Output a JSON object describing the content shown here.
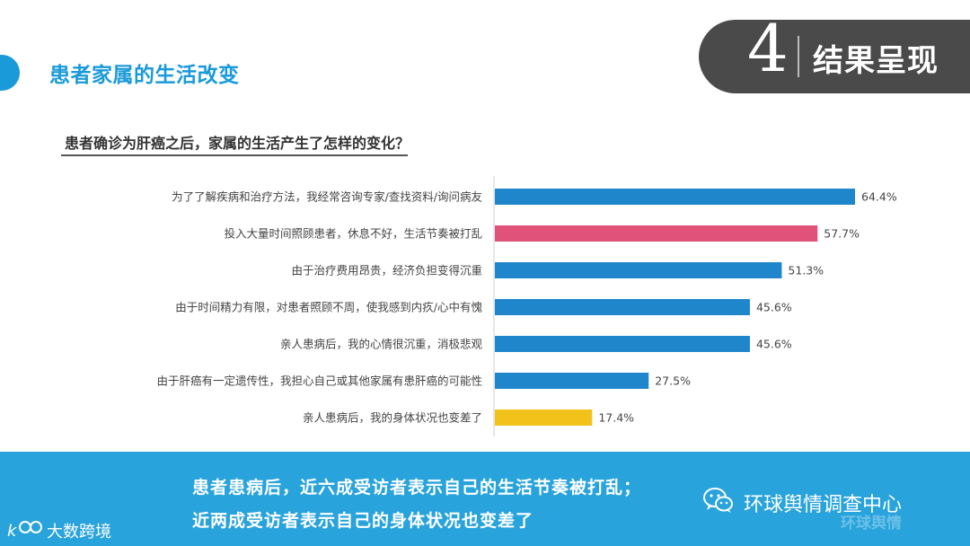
{
  "slide": {
    "title": "患者家属的生活改变",
    "section_number": "4",
    "section_label": "结果呈现"
  },
  "question": "患者确诊为肝癌之后，家属的生活产生了怎样的变化？",
  "chart_data": {
    "type": "bar",
    "orientation": "horizontal",
    "title": "",
    "xlabel": "",
    "ylabel": "",
    "categories": [
      "为了了解疾病和治疗方法，我经常咨询专家/查找资料/询问病友",
      "投入大量时间照顾患者，休息不好，生活节奏被打乱",
      "由于治疗费用昂贵，经济负担变得沉重",
      "由于时间精力有限，对患者照顾不周，使我感到内疚/心中有愧",
      "亲人患病后，我的心情很沉重，消极悲观",
      "由于肝癌有一定遗传性，我担心自己或其他家属有患肝癌的可能性",
      "亲人患病后，我的身体状况也变差了"
    ],
    "values": [
      64.4,
      57.7,
      51.3,
      45.6,
      45.6,
      27.5,
      17.4
    ],
    "value_labels": [
      "64.4%",
      "57.7%",
      "51.3%",
      "45.6%",
      "45.6%",
      "27.5%",
      "17.4%"
    ],
    "colors": [
      "#1f86cc",
      "#e0527a",
      "#1f86cc",
      "#1f86cc",
      "#1f86cc",
      "#1f86cc",
      "#f2c21a"
    ],
    "xlim": [
      0,
      70
    ],
    "grid": false,
    "legend": "none"
  },
  "footer": {
    "line1": "患者患病后，近六成受访者表示自己的生活节奏被打乱；",
    "line2": "近两成受访者表示自己的身体状况也变差了",
    "wechat_account": "环球舆情调查中心",
    "ghost_watermark": "环球舆情",
    "brand_name": "大数跨境"
  },
  "colors": {
    "accent": "#1a9ad9",
    "footer_band": "#28a3dc",
    "badge": "#4a4a4a"
  },
  "icons": {
    "wechat": "wechat-icon",
    "brand": "brand-logo"
  }
}
